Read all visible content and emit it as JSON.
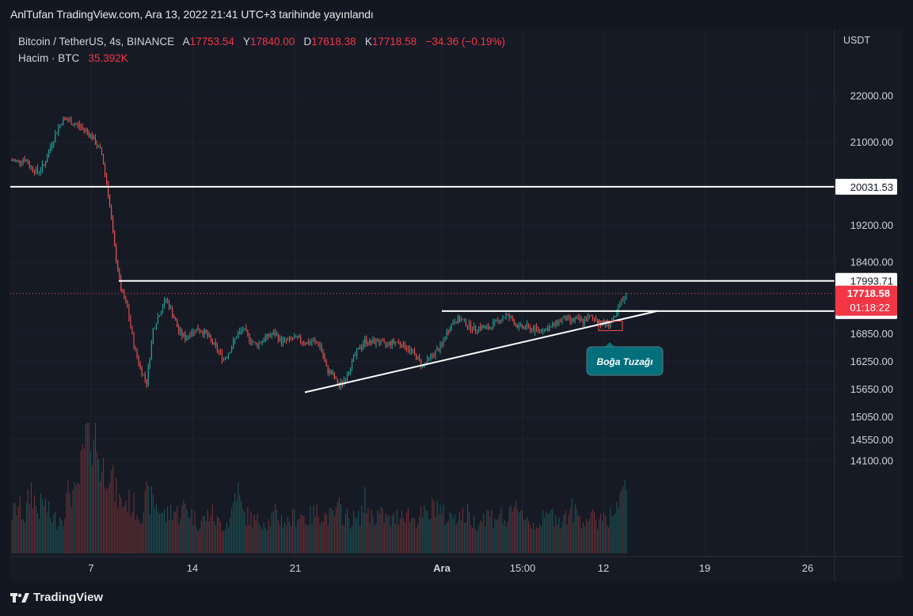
{
  "published_text": "AnlTufan TradingView.com, Ara 13, 2022 21:41 UTC+3 tarihinde yayınlandı",
  "legend": {
    "symbol": "Bitcoin / TetherUS, 4s, BINANCE",
    "o_label": "A",
    "o_value": "17753.54",
    "h_label": "Y",
    "h_value": "17840.00",
    "l_label": "D",
    "l_value": "17618.38",
    "c_label": "K",
    "c_value": "17718.58",
    "change": "−34.36 (−0.19%)",
    "volume_label": "Hacim · BTC",
    "volume_value": "35.392K"
  },
  "footer": {
    "brand": "TradingView",
    "logo_icon": "tradingview-logo-icon"
  },
  "colors": {
    "up": "#26a69a",
    "down": "#ef5350",
    "background": "#161a25",
    "annotation": "#006f7c"
  },
  "chart_data": {
    "type": "candlestick",
    "currency": "USDT",
    "y_ticks": [
      22000,
      21000,
      19200,
      18400,
      16850,
      16250,
      15650,
      15050,
      14550,
      14100
    ],
    "y_tick_labels": [
      "22000.00",
      "21000.00",
      "19200.00",
      "18400.00",
      "16850.00",
      "16250.00",
      "15650.00",
      "15050.00",
      "14550.00",
      "14100.00"
    ],
    "x_tick_labels": [
      "7",
      "14",
      "21",
      "Ara",
      "15:00",
      "12",
      "19",
      "26"
    ],
    "last_price": "17718.58",
    "countdown": "01:18:22",
    "horizontal_levels": [
      {
        "price": 20031.53,
        "label": "20031.53"
      },
      {
        "price": 17993.71,
        "label": "17993.71"
      },
      {
        "price": 17339.32,
        "label": "17339.32"
      }
    ],
    "annotation": {
      "text": "Boğa Tuzağı",
      "price": 16950
    },
    "price_path": [
      20600,
      20580,
      20640,
      20450,
      20350,
      20500,
      20900,
      21250,
      21500,
      21450,
      21380,
      21300,
      21200,
      21000,
      20750,
      19900,
      18700,
      17800,
      17400,
      16600,
      16100,
      15800,
      16950,
      17300,
      17600,
      17300,
      16900,
      16750,
      16900,
      16950,
      16880,
      16700,
      16500,
      16300,
      16500,
      16800,
      16950,
      16750,
      16600,
      16700,
      16800,
      16850,
      16680,
      16700,
      16750,
      16700,
      16650,
      16680,
      16600,
      16100,
      15950,
      15700,
      15900,
      16250,
      16500,
      16700,
      16650,
      16700,
      16600,
      16650,
      16680,
      16600,
      16500,
      16350,
      16150,
      16300,
      16450,
      16600,
      16950,
      17150,
      17150,
      17050,
      16950,
      17000,
      16950,
      17050,
      17150,
      17250,
      17150,
      16980,
      17000,
      16950,
      16930,
      16950,
      16990,
      17100,
      17180,
      17130,
      17150,
      17120,
      17200,
      17170,
      17050,
      17080,
      17180,
      17550,
      17720
    ],
    "volume_path": [
      0.3,
      0.36,
      0.28,
      0.5,
      0.32,
      0.4,
      0.28,
      0.26,
      0.3,
      0.5,
      0.42,
      0.7,
      1.0,
      0.9,
      0.62,
      0.7,
      0.48,
      0.38,
      0.4,
      0.36,
      0.3,
      0.42,
      0.4,
      0.34,
      0.28,
      0.34,
      0.3,
      0.36,
      0.3,
      0.24,
      0.26,
      0.32,
      0.24,
      0.22,
      0.26,
      0.52,
      0.3,
      0.28,
      0.24,
      0.26,
      0.24,
      0.3,
      0.26,
      0.24,
      0.28,
      0.3,
      0.26,
      0.3,
      0.32,
      0.28,
      0.28,
      0.34,
      0.28,
      0.26,
      0.26,
      0.4,
      0.28,
      0.3,
      0.28,
      0.24,
      0.28,
      0.34,
      0.28,
      0.26,
      0.3,
      0.28,
      0.4,
      0.3,
      0.26,
      0.32,
      0.28,
      0.3,
      0.24,
      0.26,
      0.3,
      0.28,
      0.3,
      0.24,
      0.3,
      0.38,
      0.28,
      0.22,
      0.24,
      0.26,
      0.3,
      0.28,
      0.26,
      0.34,
      0.3,
      0.26,
      0.28,
      0.24,
      0.3,
      0.28,
      0.32,
      0.4,
      0.55
    ]
  }
}
